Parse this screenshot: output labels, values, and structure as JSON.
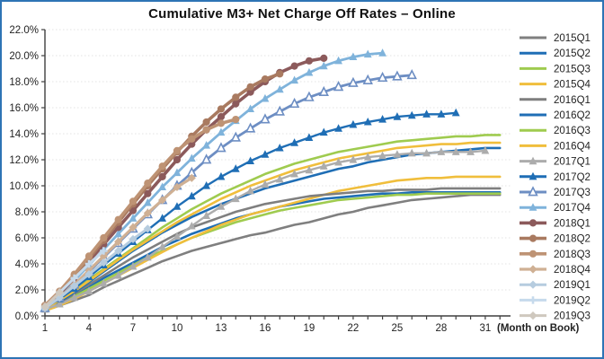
{
  "window": {
    "border_color": "#2E74B5",
    "background": "#FFFFFF"
  },
  "chart_data": {
    "type": "line",
    "title": "Cumulative M3+ Net Charge Off Rates – Online",
    "xlabel": "(Month on Book)",
    "legend_position": "right",
    "grid": "horizontal-dotted",
    "xlim": [
      1,
      33
    ],
    "ylim": [
      0,
      22
    ],
    "x_tick_labels": [
      1,
      4,
      7,
      10,
      13,
      16,
      19,
      22,
      25,
      28,
      31
    ],
    "y_tick_labels": [
      "0.0%",
      "2.0%",
      "4.0%",
      "6.0%",
      "8.0%",
      "10.0%",
      "12.0%",
      "14.0%",
      "16.0%",
      "18.0%",
      "20.0%",
      "22.0%"
    ],
    "x_starts_at_month": 1,
    "series": [
      {
        "name": "2015Q1",
        "color": "#7F7F7F",
        "marker": "none",
        "width": 2.6,
        "values": [
          0.4,
          0.8,
          1.2,
          1.6,
          2.2,
          2.7,
          3.2,
          3.7,
          4.2,
          4.6,
          5.0,
          5.3,
          5.6,
          5.9,
          6.2,
          6.4,
          6.7,
          7.0,
          7.2,
          7.5,
          7.8,
          8.0,
          8.3,
          8.5,
          8.7,
          8.9,
          9.0,
          9.1,
          9.2,
          9.3,
          9.3,
          9.3
        ]
      },
      {
        "name": "2015Q2",
        "color": "#1F6EB5",
        "marker": "none",
        "width": 2.6,
        "values": [
          0.5,
          1.0,
          1.6,
          2.2,
          2.9,
          3.5,
          4.1,
          4.7,
          5.3,
          5.8,
          6.3,
          6.7,
          7.1,
          7.5,
          7.8,
          8.1,
          8.4,
          8.6,
          8.8,
          9.0,
          9.1,
          9.2,
          9.3,
          9.4,
          9.4,
          9.5,
          9.5,
          9.5,
          9.5,
          9.5,
          9.5,
          9.5
        ]
      },
      {
        "name": "2015Q3",
        "color": "#9FCB4F",
        "marker": "none",
        "width": 2.6,
        "values": [
          0.5,
          0.9,
          1.5,
          2.1,
          2.7,
          3.3,
          3.9,
          4.5,
          5.0,
          5.5,
          6.0,
          6.4,
          6.8,
          7.2,
          7.5,
          7.8,
          8.1,
          8.3,
          8.5,
          8.7,
          8.9,
          9.0,
          9.1,
          9.2,
          9.3,
          9.3,
          9.4,
          9.4,
          9.4,
          9.4,
          9.4,
          9.4
        ]
      },
      {
        "name": "2015Q4",
        "color": "#F0BE3C",
        "marker": "none",
        "width": 2.6,
        "values": [
          0.4,
          0.8,
          1.3,
          1.9,
          2.5,
          3.1,
          3.7,
          4.3,
          4.9,
          5.5,
          6.0,
          6.5,
          7.0,
          7.4,
          7.8,
          8.1,
          8.4,
          8.7,
          9.0,
          9.3,
          9.6,
          9.8,
          10.0,
          10.2,
          10.4,
          10.5,
          10.6,
          10.6,
          10.7,
          10.7,
          10.7,
          10.7
        ]
      },
      {
        "name": "2016Q1",
        "color": "#7F7F7F",
        "marker": "none",
        "width": 2.6,
        "values": [
          0.5,
          1.0,
          1.7,
          2.4,
          3.1,
          3.8,
          4.5,
          5.1,
          5.7,
          6.3,
          6.8,
          7.2,
          7.6,
          8.0,
          8.3,
          8.6,
          8.8,
          9.0,
          9.2,
          9.3,
          9.4,
          9.5,
          9.6,
          9.6,
          9.7,
          9.7,
          9.7,
          9.8,
          9.8,
          9.8,
          9.8,
          9.8
        ]
      },
      {
        "name": "2016Q2",
        "color": "#1F6EB5",
        "marker": "none",
        "width": 2.6,
        "values": [
          0.5,
          1.1,
          1.8,
          2.6,
          3.4,
          4.2,
          5.0,
          5.7,
          6.4,
          7.0,
          7.6,
          8.1,
          8.6,
          9.0,
          9.4,
          9.8,
          10.1,
          10.4,
          10.7,
          11.0,
          11.3,
          11.5,
          11.8,
          12.0,
          12.2,
          12.4,
          12.5,
          12.6,
          12.7,
          12.8,
          12.9,
          12.9
        ]
      },
      {
        "name": "2016Q3",
        "color": "#9FCB4F",
        "marker": "none",
        "width": 2.6,
        "values": [
          0.5,
          1.2,
          2.0,
          2.8,
          3.6,
          4.4,
          5.2,
          6.0,
          6.8,
          7.5,
          8.2,
          8.8,
          9.4,
          9.9,
          10.4,
          10.9,
          11.3,
          11.7,
          12.0,
          12.3,
          12.6,
          12.8,
          13.0,
          13.2,
          13.4,
          13.5,
          13.6,
          13.7,
          13.8,
          13.8,
          13.9,
          13.9
        ]
      },
      {
        "name": "2016Q4",
        "color": "#F0BE3C",
        "marker": "none",
        "width": 2.6,
        "values": [
          0.5,
          1.2,
          1.9,
          2.7,
          3.5,
          4.3,
          5.1,
          5.8,
          6.5,
          7.2,
          7.8,
          8.4,
          9.0,
          9.5,
          10.0,
          10.4,
          10.8,
          11.2,
          11.5,
          11.8,
          12.1,
          12.3,
          12.5,
          12.7,
          12.9,
          13.0,
          13.1,
          13.2,
          13.2,
          13.3,
          13.3,
          13.3
        ]
      },
      {
        "name": "2017Q1",
        "color": "#ACACAC",
        "marker": "triangle",
        "width": 2.4,
        "values": [
          0.5,
          0.9,
          1.4,
          1.9,
          2.5,
          3.1,
          3.8,
          4.5,
          5.3,
          6.1,
          6.9,
          7.7,
          8.4,
          9.0,
          9.6,
          10.1,
          10.5,
          10.9,
          11.2,
          11.5,
          11.8,
          12.0,
          12.2,
          12.3,
          12.4,
          12.5,
          12.5,
          12.6,
          12.6,
          12.6,
          12.7
        ]
      },
      {
        "name": "2017Q2",
        "color": "#1F6EB5",
        "marker": "triangle",
        "width": 2.4,
        "values": [
          0.6,
          1.3,
          2.1,
          3.0,
          3.9,
          4.8,
          5.7,
          6.6,
          7.5,
          8.4,
          9.2,
          10.0,
          10.7,
          11.3,
          11.9,
          12.4,
          12.9,
          13.3,
          13.7,
          14.1,
          14.4,
          14.7,
          14.9,
          15.1,
          15.3,
          15.4,
          15.5,
          15.5,
          15.6
        ]
      },
      {
        "name": "2017Q3",
        "color": "#6D8EC3",
        "marker": "triangle-open",
        "width": 2.8,
        "values": [
          0.6,
          1.4,
          2.4,
          3.4,
          4.5,
          5.6,
          6.7,
          7.8,
          8.9,
          10.0,
          11.0,
          12.0,
          12.9,
          13.7,
          14.4,
          15.1,
          15.7,
          16.3,
          16.8,
          17.2,
          17.6,
          17.9,
          18.1,
          18.3,
          18.4,
          18.5
        ]
      },
      {
        "name": "2017Q4",
        "color": "#7FB3DB",
        "marker": "triangle",
        "width": 2.8,
        "values": [
          0.7,
          1.6,
          2.7,
          3.9,
          5.1,
          6.3,
          7.5,
          8.7,
          9.9,
          11.0,
          12.1,
          13.1,
          14.1,
          15.0,
          15.9,
          16.7,
          17.4,
          18.1,
          18.7,
          19.2,
          19.6,
          19.9,
          20.1,
          20.2
        ]
      },
      {
        "name": "2018Q1",
        "color": "#8C5A5B",
        "marker": "circle",
        "width": 3.6,
        "values": [
          0.7,
          1.7,
          2.9,
          4.2,
          5.5,
          6.8,
          8.1,
          9.4,
          10.7,
          12.0,
          13.2,
          14.3,
          15.3,
          16.3,
          17.2,
          18.0,
          18.7,
          19.2,
          19.6,
          19.8
        ]
      },
      {
        "name": "2018Q2",
        "color": "#A97A60",
        "marker": "circle",
        "width": 3.6,
        "values": [
          0.8,
          1.8,
          3.1,
          4.4,
          5.8,
          7.2,
          8.6,
          10.0,
          11.3,
          12.6,
          13.8,
          14.9,
          15.9,
          16.8,
          17.6,
          18.2,
          18.6
        ]
      },
      {
        "name": "2018Q3",
        "color": "#BE9374",
        "marker": "circle",
        "width": 3.6,
        "values": [
          0.8,
          1.9,
          3.2,
          4.6,
          6.0,
          7.4,
          8.8,
          10.2,
          11.5,
          12.7,
          13.6,
          14.3,
          14.8,
          15.1
        ]
      },
      {
        "name": "2018Q4",
        "color": "#CFB094",
        "marker": "diamond",
        "width": 3.2,
        "values": [
          0.6,
          1.4,
          2.4,
          3.5,
          4.6,
          5.7,
          6.8,
          7.9,
          8.9,
          9.9,
          10.6
        ]
      },
      {
        "name": "2019Q1",
        "color": "#B6CCDF",
        "marker": "diamond",
        "width": 3.0,
        "values": [
          0.6,
          1.4,
          2.3,
          3.2,
          4.1,
          5.0,
          5.9,
          6.7
        ]
      },
      {
        "name": "2019Q2",
        "color": "#C6DAEC",
        "marker": "plus",
        "width": 3.0,
        "values": [
          0.7,
          1.8,
          2.9,
          4.0,
          5.0
        ]
      },
      {
        "name": "2019Q3",
        "color": "#CFC8BE",
        "marker": "diamond",
        "width": 3.0,
        "values": [
          0.7,
          1.8
        ]
      }
    ]
  }
}
